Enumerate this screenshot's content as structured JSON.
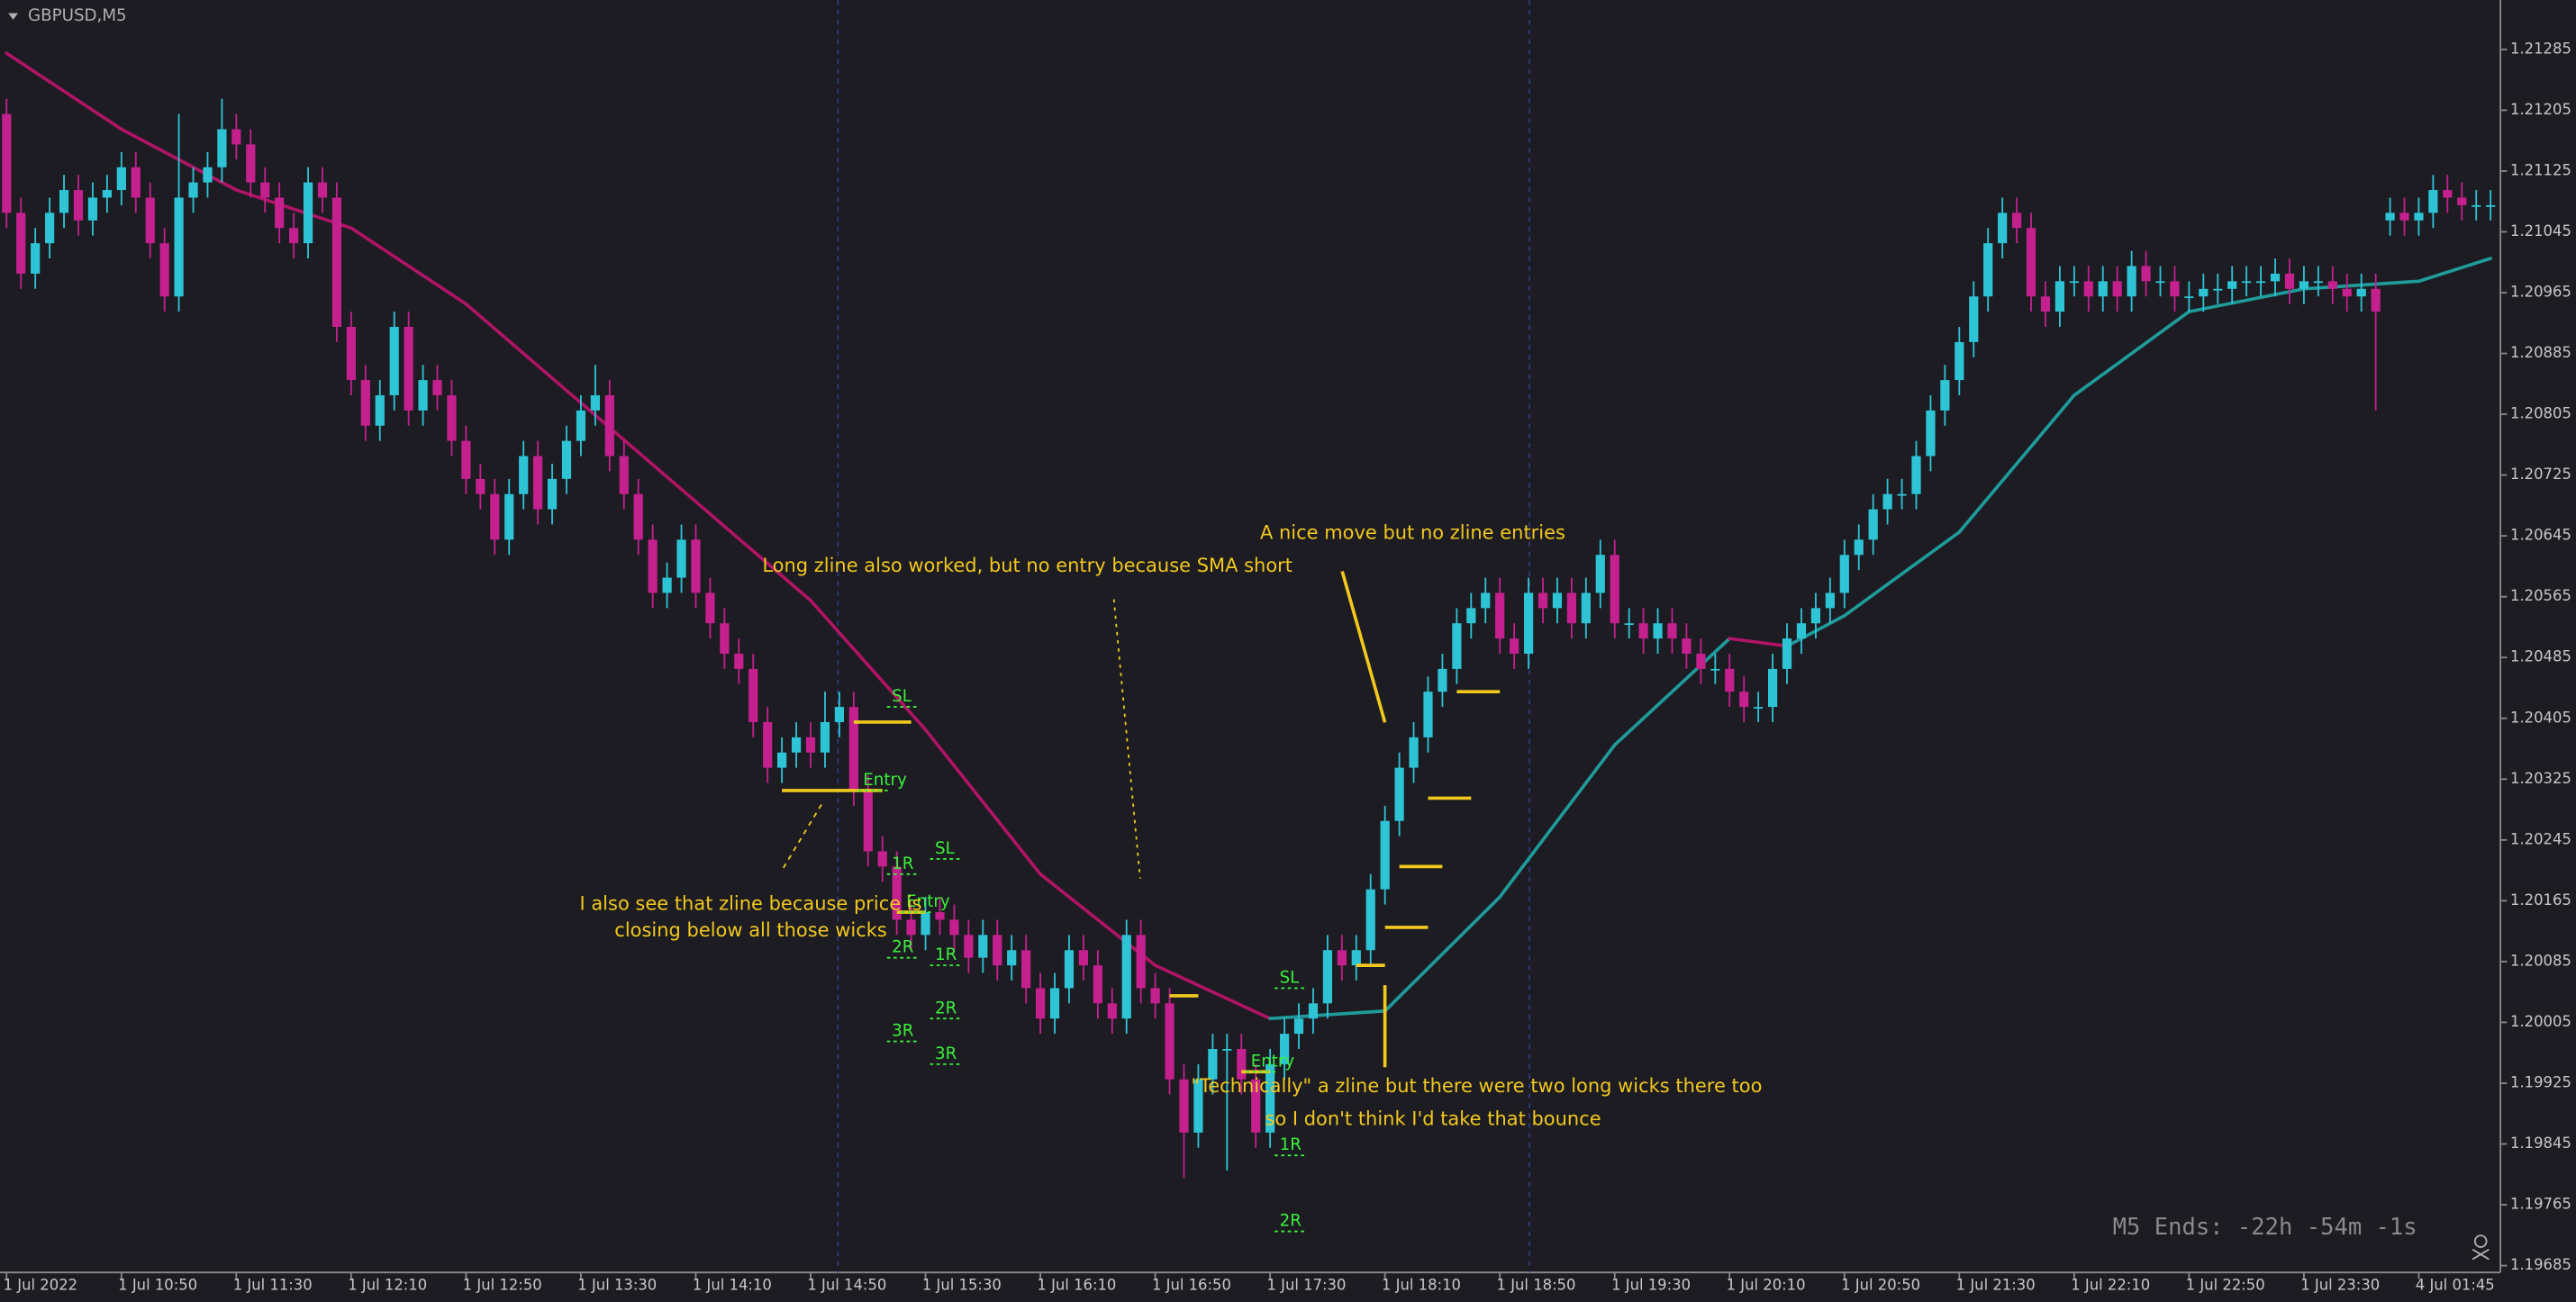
{
  "chart_data": {
    "type": "candlestick",
    "title": "GBPUSD,M5",
    "timer": "M5 Ends: -22h -54m -1s",
    "up_color": "#2ec4d6",
    "down_color": "#c4208e",
    "sma_up_color": "#1f9b9b",
    "sma_down_color": "#b01466",
    "level_color": "#f2c81e",
    "marker_color": "#3cf03c",
    "grid": false,
    "ylim": [
      1.19676,
      1.2135
    ],
    "yticks": [
      1.21285,
      1.21205,
      1.21125,
      1.21045,
      1.20965,
      1.20885,
      1.20805,
      1.20725,
      1.20645,
      1.20565,
      1.20485,
      1.20405,
      1.20325,
      1.20245,
      1.20165,
      1.20085,
      1.20005,
      1.19925,
      1.19845,
      1.19765,
      1.19685
    ],
    "categories": [
      "1 Jul 2022",
      null,
      null,
      null,
      null,
      null,
      null,
      null,
      "1 Jul 10:50",
      null,
      null,
      null,
      null,
      null,
      null,
      null,
      "1 Jul 11:30",
      null,
      null,
      null,
      null,
      null,
      null,
      null,
      "1 Jul 12:10",
      null,
      null,
      null,
      null,
      null,
      null,
      null,
      "1 Jul 12:50",
      null,
      null,
      null,
      null,
      null,
      null,
      null,
      "1 Jul 13:30",
      null,
      null,
      null,
      null,
      null,
      null,
      null,
      "1 Jul 14:10",
      null,
      null,
      null,
      null,
      null,
      null,
      null,
      "1 Jul 14:50",
      null,
      null,
      null,
      null,
      null,
      null,
      null,
      "1 Jul 15:30",
      null,
      null,
      null,
      null,
      null,
      null,
      null,
      "1 Jul 16:10",
      null,
      null,
      null,
      null,
      null,
      null,
      null,
      "1 Jul 16:50",
      null,
      null,
      null,
      null,
      null,
      null,
      null,
      "1 Jul 17:30",
      null,
      null,
      null,
      null,
      null,
      null,
      null,
      "1 Jul 18:10",
      null,
      null,
      null,
      null,
      null,
      null,
      null,
      "1 Jul 18:50",
      null,
      null,
      null,
      null,
      null,
      null,
      null,
      "1 Jul 19:30",
      null,
      null,
      null,
      null,
      null,
      null,
      null,
      "1 Jul 20:10",
      null,
      null,
      null,
      null,
      null,
      null,
      null,
      "1 Jul 20:50",
      null,
      null,
      null,
      null,
      null,
      null,
      null,
      "1 Jul 21:30",
      null,
      null,
      null,
      null,
      null,
      null,
      null,
      "1 Jul 22:10",
      null,
      null,
      null,
      null,
      null,
      null,
      null,
      "1 Jul 22:50",
      null,
      null,
      null,
      null,
      null,
      null,
      null,
      "1 Jul 23:30",
      null,
      null,
      null,
      null,
      null,
      null,
      null,
      "4 Jul 01:45",
      null,
      null,
      null,
      null,
      null
    ],
    "open": [
      1.212,
      1.2107,
      1.2099,
      1.2103,
      1.2107,
      1.211,
      1.2106,
      1.2109,
      1.211,
      1.2113,
      1.2109,
      1.2103,
      1.2096,
      1.2109,
      1.2111,
      1.2113,
      1.2118,
      1.2116,
      1.2111,
      1.2109,
      1.2105,
      1.2103,
      1.2111,
      1.2109,
      1.2092,
      1.2085,
      1.2079,
      1.2083,
      1.2092,
      1.2081,
      1.2085,
      1.2083,
      1.2077,
      1.2072,
      1.207,
      1.2064,
      1.207,
      1.2075,
      1.2068,
      1.2072,
      1.2077,
      1.2081,
      1.2083,
      1.2075,
      1.207,
      1.2064,
      1.2057,
      1.2059,
      1.2064,
      1.2057,
      1.2053,
      1.2049,
      1.2047,
      1.204,
      1.2034,
      1.2036,
      1.2038,
      1.2036,
      1.204,
      1.2042,
      1.2031,
      1.2023,
      1.2021,
      1.2014,
      1.2012,
      1.2015,
      1.2014,
      1.2012,
      1.2009,
      1.2012,
      1.2008,
      1.201,
      1.2005,
      1.2001,
      1.2005,
      1.201,
      1.2008,
      1.2003,
      1.2001,
      1.2012,
      1.2005,
      1.2003,
      1.1993,
      1.1986,
      1.1993,
      1.1997,
      1.1997,
      1.1993,
      1.1986,
      1.1995,
      1.1999,
      1.2001,
      1.2003,
      1.201,
      1.2008,
      1.201,
      1.2018,
      1.2027,
      1.2034,
      1.2038,
      1.2044,
      1.2047,
      1.2053,
      1.2055,
      1.2057,
      1.2051,
      1.2049,
      1.2057,
      1.2055,
      1.2057,
      1.2053,
      1.2057,
      1.2062,
      1.2053,
      1.2053,
      1.2051,
      1.2053,
      1.2051,
      1.2049,
      1.2047,
      1.2047,
      1.2044,
      1.2042,
      1.2042,
      1.2047,
      1.2051,
      1.2053,
      1.2055,
      1.2057,
      1.2062,
      1.2064,
      1.2068,
      1.207,
      1.207,
      1.2075,
      1.2081,
      1.2085,
      1.209,
      1.2096,
      1.2103,
      1.2107,
      1.2105,
      1.2096,
      1.2094,
      1.2098,
      1.2098,
      1.2096,
      1.2098,
      1.2096,
      1.21,
      1.2098,
      1.2098,
      1.2096,
      1.2096,
      1.2097,
      1.2097,
      1.2098,
      1.2098,
      1.2098,
      1.2099,
      1.2097,
      1.2098,
      1.2098,
      1.2097,
      1.2096,
      1.2097,
      1.2106,
      1.2107,
      1.2106,
      1.2107,
      1.211,
      1.2109,
      1.2108,
      1.2108
    ],
    "high": [
      1.2122,
      1.2109,
      1.2105,
      1.2109,
      1.2112,
      1.2112,
      1.2111,
      1.2112,
      1.2115,
      1.2115,
      1.2111,
      1.2105,
      1.212,
      1.2113,
      1.2115,
      1.2122,
      1.212,
      1.2118,
      1.2113,
      1.2111,
      1.2107,
      1.2113,
      1.2113,
      1.2111,
      1.2094,
      1.2087,
      1.2085,
      1.2094,
      1.2094,
      1.2087,
      1.2087,
      1.2085,
      1.2079,
      1.2074,
      1.2072,
      1.2072,
      1.2077,
      1.2077,
      1.2074,
      1.2079,
      1.2083,
      1.2087,
      1.2085,
      1.2077,
      1.2072,
      1.2066,
      1.2061,
      1.2066,
      1.2066,
      1.2059,
      1.2055,
      1.2051,
      1.2049,
      1.2042,
      1.2038,
      1.204,
      1.204,
      1.2044,
      1.2044,
      1.2044,
      1.2033,
      1.2025,
      1.2023,
      1.2016,
      1.2017,
      1.2017,
      1.2016,
      1.2014,
      1.2014,
      1.2014,
      1.2012,
      1.2012,
      1.2007,
      1.2007,
      1.2012,
      1.2012,
      1.201,
      1.2005,
      1.2014,
      1.2014,
      1.2007,
      1.2005,
      1.1995,
      1.1995,
      1.1999,
      1.1999,
      1.1999,
      1.1995,
      1.1997,
      1.2001,
      1.2003,
      1.2005,
      1.2012,
      1.2012,
      1.2012,
      1.202,
      1.2029,
      1.2036,
      1.204,
      1.2046,
      1.2049,
      1.2055,
      1.2057,
      1.2059,
      1.2059,
      1.2053,
      1.2059,
      1.2059,
      1.2059,
      1.2059,
      1.2059,
      1.2064,
      1.2064,
      1.2055,
      1.2055,
      1.2055,
      1.2055,
      1.2053,
      1.2051,
      1.2049,
      1.2049,
      1.2046,
      1.2044,
      1.2049,
      1.2053,
      1.2055,
      1.2057,
      1.2059,
      1.2064,
      1.2066,
      1.207,
      1.2072,
      1.2072,
      1.2077,
      1.2083,
      1.2087,
      1.2092,
      1.2098,
      1.2105,
      1.2109,
      1.2109,
      1.2107,
      1.2098,
      1.21,
      1.21,
      1.21,
      1.21,
      1.21,
      1.2102,
      1.2102,
      1.21,
      1.21,
      1.2098,
      1.2099,
      1.2099,
      1.21,
      1.21,
      1.21,
      1.2101,
      1.2101,
      1.21,
      1.21,
      1.21,
      1.2099,
      1.2099,
      1.2099,
      1.2109,
      1.2109,
      1.2109,
      1.2112,
      1.2112,
      1.2111,
      1.211,
      1.211
    ],
    "low": [
      1.2105,
      1.2097,
      1.2097,
      1.2101,
      1.2105,
      1.2104,
      1.2104,
      1.2107,
      1.2108,
      1.2107,
      1.2101,
      1.2094,
      1.2094,
      1.2107,
      1.2109,
      1.2111,
      1.2114,
      1.2109,
      1.2107,
      1.2103,
      1.2101,
      1.2101,
      1.2107,
      1.209,
      1.2083,
      1.2077,
      1.2077,
      1.2081,
      1.2079,
      1.2079,
      1.2081,
      1.2075,
      1.207,
      1.2068,
      1.2062,
      1.2062,
      1.2068,
      1.2066,
      1.2066,
      1.207,
      1.2075,
      1.2079,
      1.2073,
      1.2068,
      1.2062,
      1.2055,
      1.2055,
      1.2057,
      1.2055,
      1.2051,
      1.2047,
      1.2045,
      1.2038,
      1.2032,
      1.2032,
      1.2034,
      1.2034,
      1.2034,
      1.2038,
      1.2029,
      1.2021,
      1.2019,
      1.2012,
      1.201,
      1.201,
      1.2012,
      1.201,
      1.2007,
      1.2007,
      1.2006,
      1.2006,
      1.2003,
      1.1999,
      1.1999,
      1.2003,
      1.2006,
      1.2001,
      1.1999,
      1.1999,
      1.2003,
      1.2001,
      1.1991,
      1.198,
      1.1984,
      1.1991,
      1.1981,
      1.1991,
      1.1984,
      1.1984,
      1.1993,
      1.1997,
      1.1999,
      1.2001,
      1.2006,
      1.2006,
      1.2008,
      1.2016,
      1.2025,
      1.2032,
      1.2036,
      1.2042,
      1.2045,
      1.2051,
      1.2053,
      1.2049,
      1.2047,
      1.2047,
      1.2053,
      1.2053,
      1.2051,
      1.2051,
      1.2055,
      1.2051,
      1.2051,
      1.2049,
      1.2049,
      1.2049,
      1.2047,
      1.2045,
      1.2045,
      1.2042,
      1.204,
      1.204,
      1.204,
      1.2045,
      1.2049,
      1.2051,
      1.2053,
      1.2055,
      1.206,
      1.2062,
      1.2066,
      1.2068,
      1.2068,
      1.2073,
      1.2079,
      1.2083,
      1.2088,
      1.2094,
      1.2101,
      1.2103,
      1.2094,
      1.2092,
      1.2092,
      1.2096,
      1.2094,
      1.2094,
      1.2094,
      1.2094,
      1.2096,
      1.2096,
      1.2094,
      1.2094,
      1.2094,
      1.2095,
      1.2095,
      1.2096,
      1.2096,
      1.2096,
      1.2095,
      1.2095,
      1.2096,
      1.2095,
      1.2094,
      1.2094,
      1.2081,
      1.2104,
      1.2104,
      1.2104,
      1.2105,
      1.2107,
      1.2106,
      1.2106,
      1.2106
    ],
    "close": [
      1.2107,
      1.2099,
      1.2103,
      1.2107,
      1.211,
      1.2106,
      1.2109,
      1.211,
      1.2113,
      1.2109,
      1.2103,
      1.2096,
      1.2109,
      1.2111,
      1.2113,
      1.2118,
      1.2116,
      1.2111,
      1.2109,
      1.2105,
      1.2103,
      1.2111,
      1.2109,
      1.2092,
      1.2085,
      1.2079,
      1.2083,
      1.2092,
      1.2081,
      1.2085,
      1.2083,
      1.2077,
      1.2072,
      1.207,
      1.2064,
      1.207,
      1.2075,
      1.2068,
      1.2072,
      1.2077,
      1.2081,
      1.2083,
      1.2075,
      1.207,
      1.2064,
      1.2057,
      1.2059,
      1.2064,
      1.2057,
      1.2053,
      1.2049,
      1.2047,
      1.204,
      1.2034,
      1.2036,
      1.2038,
      1.2036,
      1.204,
      1.2042,
      1.2031,
      1.2023,
      1.2021,
      1.2014,
      1.2012,
      1.2015,
      1.2014,
      1.2012,
      1.2009,
      1.2012,
      1.2008,
      1.201,
      1.2005,
      1.2001,
      1.2005,
      1.201,
      1.2008,
      1.2003,
      1.2001,
      1.2012,
      1.2005,
      1.2003,
      1.1993,
      1.1986,
      1.1993,
      1.1997,
      1.1997,
      1.1993,
      1.1986,
      1.1995,
      1.1999,
      1.2001,
      1.2003,
      1.201,
      1.2008,
      1.201,
      1.2018,
      1.2027,
      1.2034,
      1.2038,
      1.2044,
      1.2047,
      1.2053,
      1.2055,
      1.2057,
      1.2051,
      1.2049,
      1.2057,
      1.2055,
      1.2057,
      1.2053,
      1.2057,
      1.2062,
      1.2053,
      1.2053,
      1.2051,
      1.2053,
      1.2051,
      1.2049,
      1.2047,
      1.2047,
      1.2044,
      1.2042,
      1.2042,
      1.2047,
      1.2051,
      1.2053,
      1.2055,
      1.2057,
      1.2062,
      1.2064,
      1.2068,
      1.207,
      1.207,
      1.2075,
      1.2081,
      1.2085,
      1.209,
      1.2096,
      1.2103,
      1.2107,
      1.2105,
      1.2096,
      1.2094,
      1.2098,
      1.2098,
      1.2096,
      1.2098,
      1.2096,
      1.21,
      1.2098,
      1.2098,
      1.2096,
      1.2096,
      1.2097,
      1.2097,
      1.2098,
      1.2098,
      1.2098,
      1.2099,
      1.2097,
      1.2098,
      1.2098,
      1.2097,
      1.2096,
      1.2097,
      1.2094,
      1.2107,
      1.2106,
      1.2107,
      1.211,
      1.2109,
      1.2108,
      1.2108,
      1.2108
    ],
    "sma": {
      "x": [
        0,
        8,
        16,
        24,
        32,
        40,
        48,
        56,
        64,
        72,
        80,
        88,
        96,
        104,
        112,
        120,
        124,
        128,
        136,
        144,
        152,
        160,
        168,
        173
      ],
      "values": [
        1.2128,
        1.2118,
        1.211,
        1.2105,
        1.2095,
        1.2082,
        1.2069,
        1.2056,
        1.2039,
        1.202,
        1.2008,
        1.2001,
        1.2002,
        1.2017,
        1.2037,
        1.2051,
        1.205,
        1.2054,
        1.2065,
        1.2083,
        1.2094,
        1.2097,
        1.2098,
        1.2101
      ]
    },
    "zlines": [
      {
        "price": 1.2031,
        "from": 54,
        "to": 61
      },
      {
        "price": 1.204,
        "from": 59,
        "to": 63
      },
      {
        "price": 1.2015,
        "from": 62,
        "to": 64
      },
      {
        "price": 1.2004,
        "from": 81,
        "to": 83
      },
      {
        "price": 1.1994,
        "from": 86,
        "to": 88
      },
      {
        "price": 1.2008,
        "from": 94,
        "to": 96
      },
      {
        "price": 1.2013,
        "from": 96,
        "to": 99
      },
      {
        "price": 1.2021,
        "from": 97,
        "to": 100
      },
      {
        "price": 1.203,
        "from": 99,
        "to": 102
      },
      {
        "price": 1.2044,
        "from": 101,
        "to": 104
      }
    ],
    "markers": [
      {
        "label": "SL",
        "price": 1.2042,
        "bar": 62
      },
      {
        "label": "Entry",
        "price": 1.2031,
        "bar": 60
      },
      {
        "label": "1R",
        "price": 1.202,
        "bar": 62
      },
      {
        "label": "SL",
        "price": 1.2022,
        "bar": 65
      },
      {
        "label": "Entry",
        "price": 1.2015,
        "bar": 63
      },
      {
        "label": "2R",
        "price": 1.2009,
        "bar": 62
      },
      {
        "label": "1R",
        "price": 1.2008,
        "bar": 65
      },
      {
        "label": "2R",
        "price": 1.2001,
        "bar": 65
      },
      {
        "label": "3R",
        "price": 1.1998,
        "bar": 62
      },
      {
        "label": "3R",
        "price": 1.1995,
        "bar": 65
      },
      {
        "label": "SL",
        "price": 1.2005,
        "bar": 89
      },
      {
        "label": "Entry",
        "price": 1.1994,
        "bar": 87
      },
      {
        "label": "1R",
        "price": 1.1983,
        "bar": 89
      },
      {
        "label": "2R",
        "price": 1.1973,
        "bar": 89
      }
    ],
    "annotations": [
      "Long zline also worked, but no entry because SMA short",
      "A nice move but no zline entries",
      "I also see that zline because price is",
      "closing below all those wicks",
      "\"Technically\" a zline but there were two long wicks there too",
      "so I don't think I'd take that bounce"
    ]
  }
}
